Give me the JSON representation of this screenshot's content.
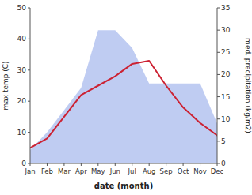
{
  "chart_data": {
    "type": "line",
    "xlabel": "date (month)",
    "ylabel": "max temp (C)",
    "y2label": "med. precipitation (kg/m2)",
    "categories": [
      "Jan",
      "Feb",
      "Mar",
      "Apr",
      "May",
      "Jun",
      "Jul",
      "Aug",
      "Sep",
      "Oct",
      "Nov",
      "Dec"
    ],
    "series": [
      {
        "type": "area",
        "axis": "y2",
        "color": "#aabbee",
        "values": [
          3,
          7,
          12,
          17,
          30,
          30,
          26,
          18,
          18,
          18,
          18,
          9
        ]
      },
      {
        "type": "line",
        "color": "#cc2233",
        "values": [
          5,
          8,
          15,
          22,
          25,
          28,
          32,
          33,
          25,
          18,
          13,
          9
        ]
      }
    ],
    "ylim": [
      0,
      50
    ],
    "yticks": [
      0,
      10,
      20,
      30,
      40,
      50
    ],
    "y2lim": [
      0,
      35
    ],
    "y2ticks": [
      0,
      5,
      10,
      15,
      20,
      25,
      30,
      35
    ],
    "grid": false
  }
}
